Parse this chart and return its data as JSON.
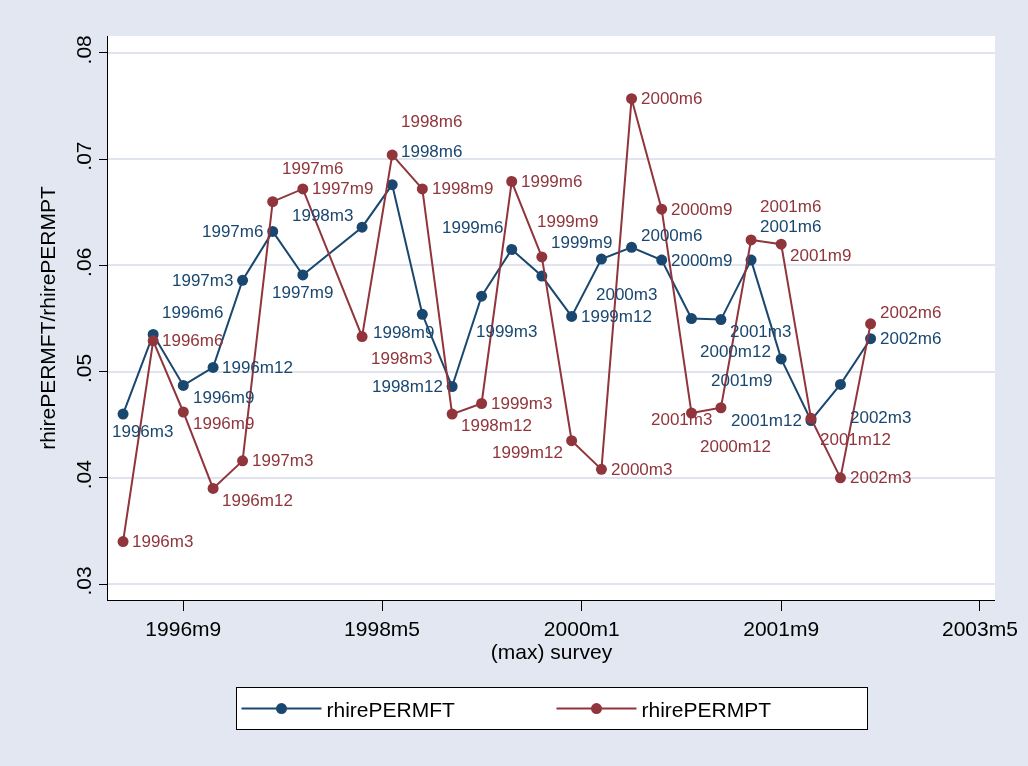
{
  "chart_data": {
    "type": "line",
    "xlabel": "(max) survey",
    "ylabel": "rhirePERMFT/rhirePERMPT",
    "x": [
      "1996-03",
      "1996-06",
      "1996-09",
      "1996-12",
      "1997-03",
      "1997-06",
      "1997-09",
      "1998-03",
      "1998-06",
      "1998-09",
      "1998-12",
      "1999-03",
      "1999-06",
      "1999-09",
      "1999-12",
      "2000-03",
      "2000-06",
      "2000-09",
      "2000-12",
      "2001-03",
      "2001-06",
      "2001-09",
      "2001-12",
      "2002-03",
      "2002-06"
    ],
    "series": [
      {
        "name": "rhirePERMFT",
        "color": "#1a476f",
        "values": [
          0.046,
          0.0535,
          0.0487,
          0.0504,
          0.0586,
          0.0632,
          0.0591,
          0.0636,
          0.0676,
          0.0554,
          0.0486,
          0.0571,
          0.0615,
          0.059,
          0.0552,
          0.0606,
          0.0617,
          0.0605,
          0.055,
          0.0549,
          0.0605,
          0.0512,
          0.0454,
          0.0488,
          0.0531
        ]
      },
      {
        "name": "rhirePERMPT",
        "color": "#90353b",
        "values": [
          0.034,
          0.0529,
          0.0462,
          0.039,
          0.0416,
          0.066,
          0.0672,
          0.0533,
          0.0704,
          0.0672,
          0.046,
          0.047,
          0.0679,
          0.0608,
          0.0435,
          0.0408,
          0.0757,
          0.0653,
          0.0461,
          0.0466,
          0.0624,
          0.062,
          0.0456,
          0.04,
          0.0545
        ]
      }
    ],
    "annotations": [
      {
        "text": "1996m3",
        "x": "1996-03",
        "y": 0.046
      },
      {
        "text": "1996m6",
        "x": "1996-06",
        "y": 0.0535
      },
      {
        "text": "1996m9",
        "x": "1996-09",
        "y": 0.0487
      },
      {
        "text": "1996m12",
        "x": "1996-12",
        "y": 0.0504
      },
      {
        "text": "1997m3",
        "x": "1997-03",
        "y": 0.0586
      },
      {
        "text": "1997m6",
        "x": "1997-06",
        "y": 0.0632
      },
      {
        "text": "1997m9",
        "x": "1997-09",
        "y": 0.0591
      },
      {
        "text": "1998m3",
        "x": "1998-03",
        "y": 0.0636
      },
      {
        "text": "1998m6",
        "x": "1998-06",
        "y": 0.0676
      },
      {
        "text": "1998m9",
        "x": "1998-09",
        "y": 0.0554
      },
      {
        "text": "1998m12",
        "x": "1998-12",
        "y": 0.0486
      },
      {
        "text": "1999m3",
        "x": "1999-03",
        "y": 0.0571
      },
      {
        "text": "1999m6",
        "x": "1999-06",
        "y": 0.0615
      },
      {
        "text": "1999m9",
        "x": "1999-09",
        "y": 0.059
      },
      {
        "text": "1999m12",
        "x": "1999-12",
        "y": 0.0552
      },
      {
        "text": "2000m3",
        "x": "2000-03",
        "y": 0.0606
      },
      {
        "text": "2000m6",
        "x": "2000-06",
        "y": 0.0617
      },
      {
        "text": "2000m9",
        "x": "2000-09",
        "y": 0.0605
      },
      {
        "text": "2000m12",
        "x": "2000-12",
        "y": 0.055
      },
      {
        "text": "2001m3",
        "x": "2001-03",
        "y": 0.0549
      },
      {
        "text": "2001m6",
        "x": "2001-06",
        "y": 0.0605
      },
      {
        "text": "2001m9",
        "x": "2001-09",
        "y": 0.0512
      },
      {
        "text": "2001m12",
        "x": "2001-12",
        "y": 0.0454
      },
      {
        "text": "2002m3",
        "x": "2002-03",
        "y": 0.0488
      },
      {
        "text": "2002m6",
        "x": "2002-06",
        "y": 0.0531
      },
      {
        "text": "1996m3",
        "x": "1996-03",
        "y": 0.034
      },
      {
        "text": "1996m6",
        "x": "1996-06",
        "y": 0.0529
      },
      {
        "text": "1996m9",
        "x": "1996-09",
        "y": 0.0462
      },
      {
        "text": "1996m12",
        "x": "1996-12",
        "y": 0.039
      },
      {
        "text": "1997m3",
        "x": "1997-03",
        "y": 0.0416
      },
      {
        "text": "1997m6",
        "x": "1997-06",
        "y": 0.066
      },
      {
        "text": "1997m9",
        "x": "1997-09",
        "y": 0.0672
      },
      {
        "text": "1998m3",
        "x": "1998-03",
        "y": 0.0533
      },
      {
        "text": "1998m6",
        "x": "1998-06",
        "y": 0.0704
      },
      {
        "text": "1998m9",
        "x": "1998-09",
        "y": 0.0672
      },
      {
        "text": "1998m12",
        "x": "1998-12",
        "y": 0.046
      },
      {
        "text": "1999m3",
        "x": "1999-03",
        "y": 0.047
      },
      {
        "text": "1999m6",
        "x": "1999-06",
        "y": 0.0679
      },
      {
        "text": "1999m9",
        "x": "1999-09",
        "y": 0.0608
      },
      {
        "text": "1999m12",
        "x": "1999-12",
        "y": 0.0435
      },
      {
        "text": "2000m3",
        "x": "2000-03",
        "y": 0.0408
      },
      {
        "text": "2000m6",
        "x": "2000-06",
        "y": 0.0757
      },
      {
        "text": "2000m9",
        "x": "2000-09",
        "y": 0.0653
      },
      {
        "text": "2000m12",
        "x": "2000-12",
        "y": 0.0461
      },
      {
        "text": "2001m3",
        "x": "2001-03",
        "y": 0.0466
      },
      {
        "text": "2001m6",
        "x": "2001-06",
        "y": 0.0624
      },
      {
        "text": "2001m9",
        "x": "2001-09",
        "y": 0.062
      },
      {
        "text": "2001m12",
        "x": "2001-12",
        "y": 0.0456
      },
      {
        "text": "2002m3",
        "x": "2002-03",
        "y": 0.04
      },
      {
        "text": "2002m6",
        "x": "2002-06",
        "y": 0.0545
      }
    ],
    "xlim": [
      "1996-01-15",
      "2003-06-16"
    ],
    "xticks": [
      {
        "value": "1996-09",
        "label": "1996m9"
      },
      {
        "value": "1998-05",
        "label": "1998m5"
      },
      {
        "value": "2000-01",
        "label": "2000m1"
      },
      {
        "value": "2001-09",
        "label": "2001m9"
      },
      {
        "value": "2003-05",
        "label": "2003m5"
      }
    ],
    "ylim": [
      0.0285,
      0.0816
    ],
    "yticks": [
      {
        "value": 0.03,
        "label": ".03"
      },
      {
        "value": 0.04,
        "label": ".04"
      },
      {
        "value": 0.05,
        "label": ".05"
      },
      {
        "value": 0.06,
        "label": ".06"
      },
      {
        "value": 0.07,
        "label": ".07"
      },
      {
        "value": 0.08,
        "label": ".08"
      }
    ],
    "grid": "y",
    "legend": "bottom",
    "marker": "circle",
    "line_style": "solid"
  }
}
